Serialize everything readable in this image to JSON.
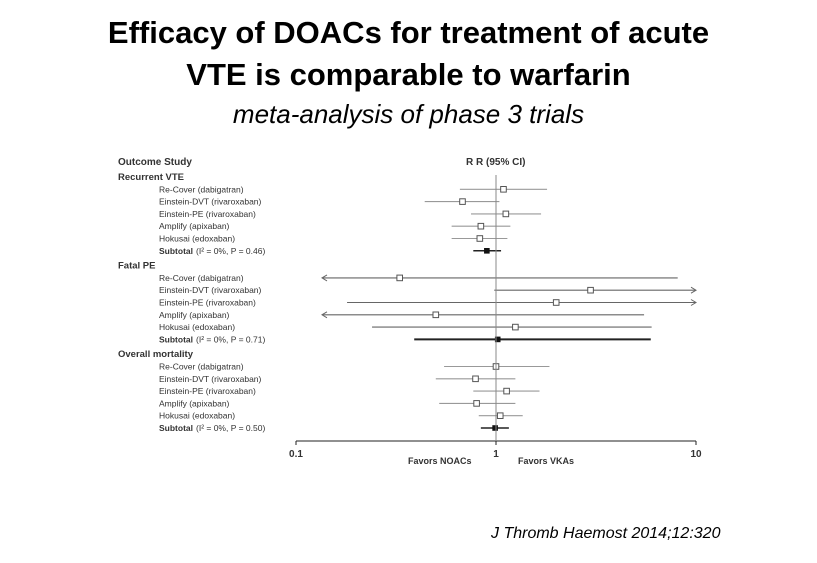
{
  "slide": {
    "title_line1": "Efficacy of DOACs for treatment of acute",
    "title_line2": "VTE is comparable to warfarin",
    "subtitle": "meta-analysis of phase 3 trials",
    "citation": "J Thromb Haemost 2014;12:320"
  },
  "chart_data": {
    "type": "forest",
    "scale": "log",
    "xlim": [
      0.1,
      10
    ],
    "ticks": [
      {
        "value": 0.1,
        "label": "0.1"
      },
      {
        "value": 1,
        "label": "1"
      },
      {
        "value": 10,
        "label": "10"
      }
    ],
    "header_left": "Outcome Study",
    "header_right": "R R (95% CI)",
    "favors_left": "Favors NOACs",
    "favors_right": "Favors VKAs",
    "groups": [
      {
        "name": "Recurrent VTE",
        "studies": [
          {
            "label": "Re-Cover (dabigatran)",
            "rr": 1.09,
            "lo": 0.66,
            "hi": 1.8
          },
          {
            "label": "Einstein-DVT (rivaroxaban)",
            "rr": 0.68,
            "lo": 0.44,
            "hi": 1.04
          },
          {
            "label": "Einstein-PE (rivaroxaban)",
            "rr": 1.12,
            "lo": 0.75,
            "hi": 1.68
          },
          {
            "label": "Amplify (apixaban)",
            "rr": 0.84,
            "lo": 0.6,
            "hi": 1.18
          },
          {
            "label": "Hokusai (edoxaban)",
            "rr": 0.83,
            "lo": 0.6,
            "hi": 1.14
          }
        ],
        "subtotal": {
          "label": "Subtotal",
          "stats": "(I² = 0%, P = 0.46)",
          "rr": 0.9,
          "lo": 0.77,
          "hi": 1.06
        }
      },
      {
        "name": "Fatal PE",
        "studies": [
          {
            "label": "Re-Cover (dabigatran)",
            "rr": 0.33,
            "lo": 0.014,
            "hi": 8.1
          },
          {
            "label": "Einstein-DVT (rivaroxaban)",
            "rr": 2.97,
            "lo": 0.98,
            "hi": 10
          },
          {
            "label": "Einstein-PE (rivaroxaban)",
            "rr": 2.0,
            "lo": 0.18,
            "hi": 10
          },
          {
            "label": "Amplify (apixaban)",
            "rr": 0.5,
            "lo": 0.05,
            "hi": 5.5
          },
          {
            "label": "Hokusai (edoxaban)",
            "rr": 1.25,
            "lo": 0.24,
            "hi": 6.0
          }
        ],
        "subtotal": {
          "label": "Subtotal",
          "stats": "(I² = 0%, P = 0.71)",
          "rr": 1.02,
          "lo": 0.39,
          "hi": 5.94
        }
      },
      {
        "name": "Overall mortality",
        "studies": [
          {
            "label": "Re-Cover (dabigatran)",
            "rr": 1.0,
            "lo": 0.55,
            "hi": 1.85
          },
          {
            "label": "Einstein-DVT (rivaroxaban)",
            "rr": 0.79,
            "lo": 0.5,
            "hi": 1.25
          },
          {
            "label": "Einstein-PE (rivaroxaban)",
            "rr": 1.13,
            "lo": 0.77,
            "hi": 1.65
          },
          {
            "label": "Amplify (apixaban)",
            "rr": 0.8,
            "lo": 0.52,
            "hi": 1.25
          },
          {
            "label": "Hokusai (edoxaban)",
            "rr": 1.05,
            "lo": 0.82,
            "hi": 1.36
          }
        ],
        "subtotal": {
          "label": "Subtotal",
          "stats": "(I² = 0%, P = 0.50)",
          "rr": 0.99,
          "lo": 0.84,
          "hi": 1.16
        }
      }
    ]
  }
}
